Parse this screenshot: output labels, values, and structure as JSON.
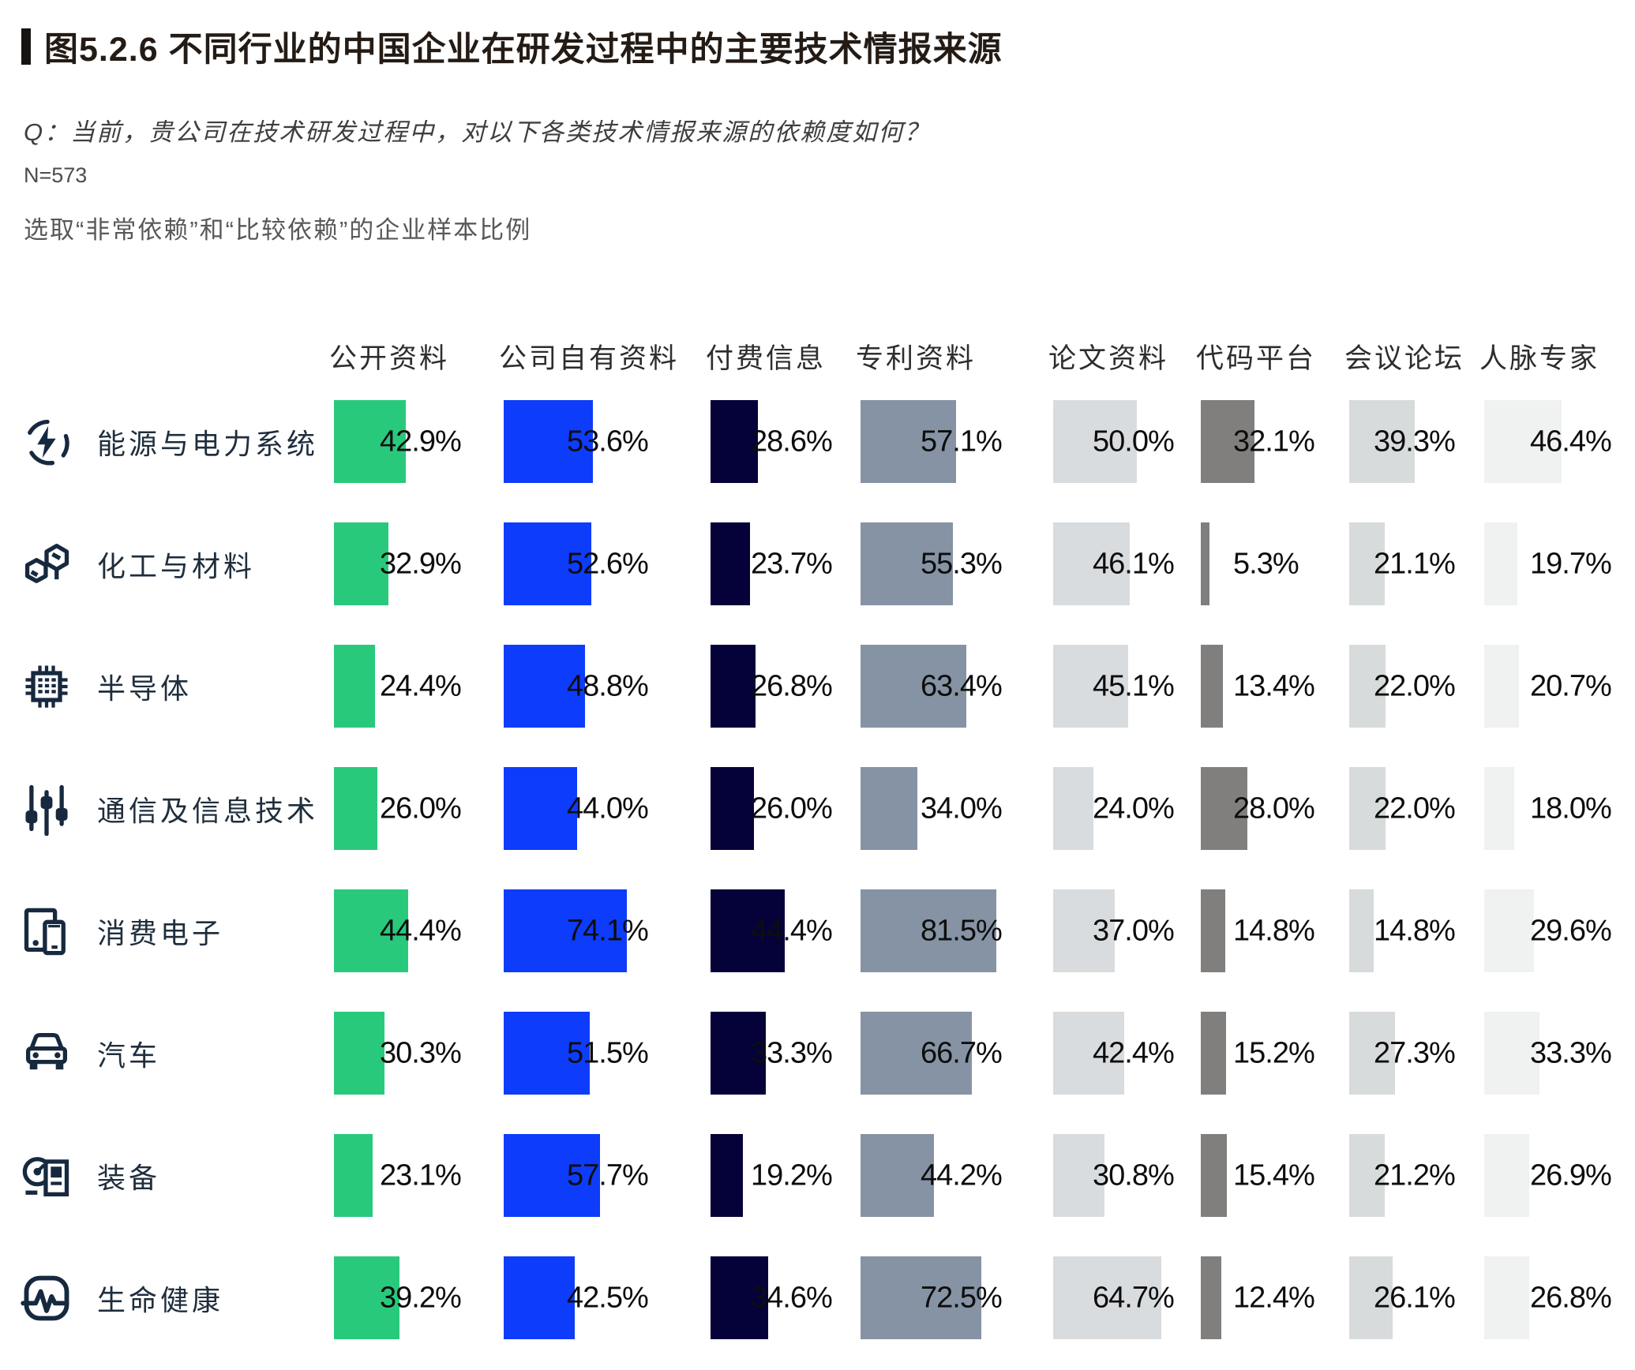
{
  "figure": {
    "title": "图5.2.6 不同行业的中国企业在研发过程中的主要技术情报来源",
    "question": "Q：当前，贵公司在技术研发过程中，对以下各类技术情报来源的依赖度如何？",
    "sample_size": "N=573",
    "note": "选取“非常依赖”和“比较依赖”的企业样本比例"
  },
  "chart_data": {
    "type": "bar",
    "orientation": "horizontal",
    "unit": "percent",
    "value_suffix": "%",
    "value_range": [
      0,
      100
    ],
    "grid": false,
    "legend_position": "column headers along top",
    "categories": [
      "能源与电力系统",
      "化工与材料",
      "半导体",
      "通信及信息技术",
      "消费电子",
      "汽车",
      "装备",
      "生命健康"
    ],
    "category_icons": [
      "energy-power-icon",
      "chemicals-materials-icon",
      "semiconductor-icon",
      "ict-icon",
      "consumer-electronics-icon",
      "automotive-icon",
      "equipment-icon",
      "life-health-icon"
    ],
    "series": [
      {
        "name": "公开资料",
        "color": "#29C97C",
        "values": [
          42.9,
          32.9,
          24.4,
          26.0,
          44.4,
          30.3,
          23.1,
          39.2
        ]
      },
      {
        "name": "公司自有资料",
        "color": "#0E3CFB",
        "values": [
          53.6,
          52.6,
          48.8,
          44.0,
          74.1,
          51.5,
          57.7,
          42.5
        ]
      },
      {
        "name": "付费信息",
        "color": "#050139",
        "values": [
          28.6,
          23.7,
          26.8,
          26.0,
          44.4,
          33.3,
          19.2,
          34.6
        ]
      },
      {
        "name": "专利资料",
        "color": "#8593A4",
        "values": [
          57.1,
          55.3,
          63.4,
          34.0,
          81.5,
          66.7,
          44.2,
          72.5
        ]
      },
      {
        "name": "论文资料",
        "color": "#D9DCDE",
        "values": [
          50.0,
          46.1,
          45.1,
          24.0,
          37.0,
          42.4,
          30.8,
          64.7
        ]
      },
      {
        "name": "代码平台",
        "color": "#807F7E",
        "values": [
          32.1,
          5.3,
          13.4,
          28.0,
          14.8,
          15.2,
          15.4,
          12.4
        ]
      },
      {
        "name": "会议论坛",
        "color": "#D7DBDC",
        "values": [
          39.3,
          21.1,
          22.0,
          22.0,
          14.8,
          27.3,
          21.2,
          26.1
        ]
      },
      {
        "name": "人脉专家",
        "color": "#F0F1F1",
        "values": [
          46.4,
          19.7,
          20.7,
          18.0,
          29.6,
          33.3,
          26.9,
          26.8
        ]
      }
    ]
  }
}
